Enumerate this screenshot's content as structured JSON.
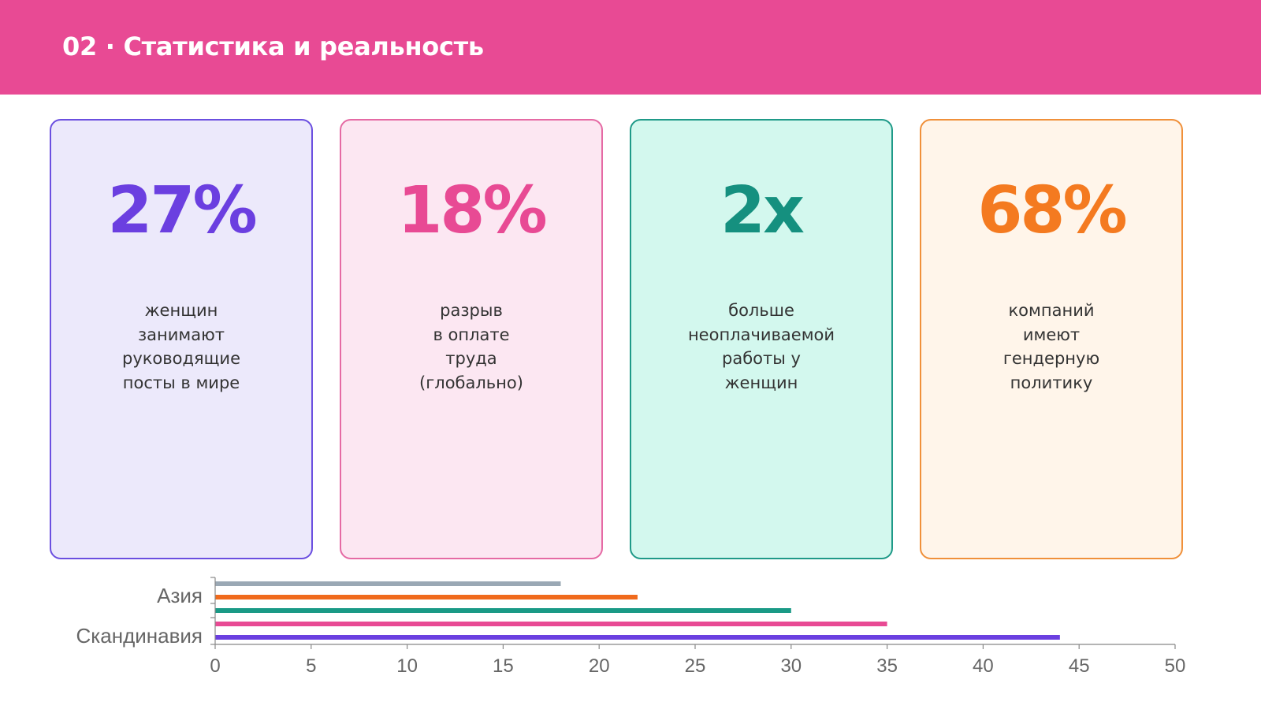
{
  "header": {
    "title": "02 · Статистика и реальность",
    "color": "#e84a94"
  },
  "cards": [
    {
      "value": "27%",
      "lines": [
        "женщин",
        "занимают",
        "руководящие",
        "посты в мире"
      ],
      "accent": "#6b3fe0",
      "bg": "#ece9fb",
      "border": "#6b4fe0"
    },
    {
      "value": "18%",
      "lines": [
        "разрыв",
        "в оплате",
        "труда",
        "(глобально)"
      ],
      "accent": "#e84a94",
      "bg": "#fce7f2",
      "border": "#e56aa4"
    },
    {
      "value": "2x",
      "lines": [
        "больше",
        "неоплачиваемой",
        "работы у",
        "женщин"
      ],
      "accent": "#15907f",
      "bg": "#d3f8ee",
      "border": "#1f9a88"
    },
    {
      "value": "68%",
      "lines": [
        "компаний",
        "имеют",
        "гендерную",
        "политику"
      ],
      "accent": "#f47a20",
      "bg": "#fff5ea",
      "border": "#f0903a"
    }
  ],
  "chart_data": {
    "type": "bar",
    "orientation": "horizontal",
    "bars": [
      {
        "value": 44,
        "color": "#6b3fe0"
      },
      {
        "value": 35,
        "color": "#e84a94"
      },
      {
        "value": 30,
        "color": "#1a9a86"
      },
      {
        "value": 22,
        "color": "#f06a1c"
      },
      {
        "value": 18,
        "color": "#9aa8b4"
      }
    ],
    "category_labels": [
      "Скандинавия",
      "Азия"
    ],
    "xlim": [
      0,
      50
    ],
    "xticks": [
      "0",
      "5",
      "10",
      "15",
      "20",
      "25",
      "30",
      "35",
      "40",
      "45",
      "50"
    ],
    "grid": false,
    "legend": "none"
  }
}
